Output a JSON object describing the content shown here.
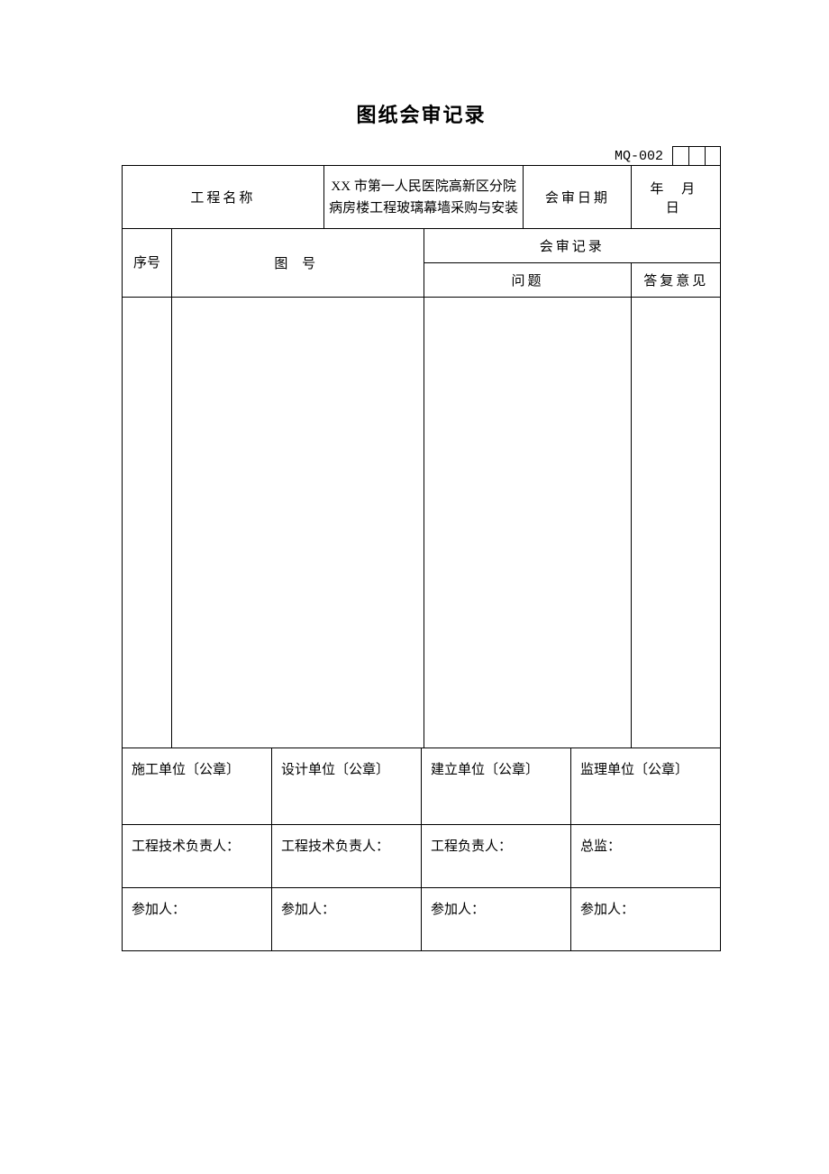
{
  "title": "图纸会审记录",
  "doc_code": "MQ-002",
  "header": {
    "project_name_label": "工程名称",
    "project_name_value": "XX 市第一人民医院高新区分院病房楼工程玻璃幕墙采购与安装",
    "review_date_label": "会审日期",
    "review_date_value": "年 月 日"
  },
  "columns": {
    "seq": "序号",
    "drawing": "图 号",
    "record": "会审记录",
    "question": "问题",
    "reply": "答复意见"
  },
  "signatures": {
    "unit1_title": "施工单位〔公章〕",
    "unit2_title": "设计单位〔公章〕",
    "unit3_title": "建立单位〔公章〕",
    "unit4_title": "监理单位〔公章〕",
    "resp1": "工程技术负责人：",
    "resp2": "工程技术负责人：",
    "resp3": "工程负责人：",
    "resp4": "总监：",
    "part1": "参加人：",
    "part2": "参加人：",
    "part3": "参加人：",
    "part4": "参加人："
  }
}
